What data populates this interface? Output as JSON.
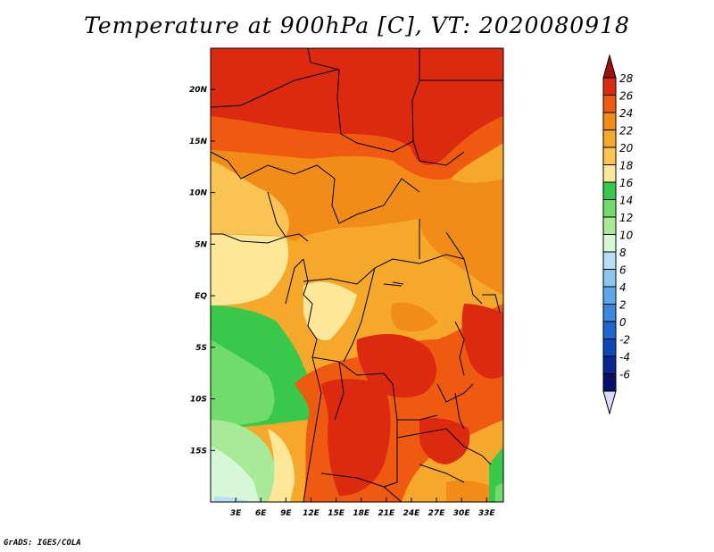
{
  "title": "Temperature at 900hPa [C], VT: 2020080918",
  "credit": "GrADS: IGES/COLA",
  "map": {
    "lon_range": [
      0,
      35
    ],
    "lat_range": [
      -20,
      24
    ],
    "lon_ticks": [
      {
        "v": 3,
        "label": "3E"
      },
      {
        "v": 6,
        "label": "6E"
      },
      {
        "v": 9,
        "label": "9E"
      },
      {
        "v": 12,
        "label": "12E"
      },
      {
        "v": 15,
        "label": "15E"
      },
      {
        "v": 18,
        "label": "18E"
      },
      {
        "v": 21,
        "label": "21E"
      },
      {
        "v": 24,
        "label": "24E"
      },
      {
        "v": 27,
        "label": "27E"
      },
      {
        "v": 30,
        "label": "30E"
      },
      {
        "v": 33,
        "label": "33E"
      }
    ],
    "lat_ticks": [
      {
        "v": 20,
        "label": "20N"
      },
      {
        "v": 15,
        "label": "15N"
      },
      {
        "v": 10,
        "label": "10N"
      },
      {
        "v": 5,
        "label": "5N"
      },
      {
        "v": 0,
        "label": "EQ"
      },
      {
        "v": -5,
        "label": "5S"
      },
      {
        "v": -10,
        "label": "10S"
      },
      {
        "v": -15,
        "label": "15S"
      }
    ]
  },
  "colorbar": {
    "levels": [
      "28",
      "26",
      "24",
      "22",
      "20",
      "18",
      "16",
      "14",
      "12",
      "10",
      "8",
      "6",
      "4",
      "2",
      "0",
      "-2",
      "-4",
      "-6"
    ],
    "colors": [
      "#dc2a10",
      "#ee5a0f",
      "#f28c18",
      "#f6a82a",
      "#fac454",
      "#fde89a",
      "#38c84a",
      "#70dc6c",
      "#a8ea98",
      "#d6f8d6",
      "#b6e0f8",
      "#8ac6f2",
      "#5ea8ea",
      "#3a88de",
      "#1e66d0",
      "#0f46b8",
      "#0a2690",
      "#06106c"
    ],
    "top_color": "#a01010",
    "bottom_color": "#dcdcf8"
  }
}
